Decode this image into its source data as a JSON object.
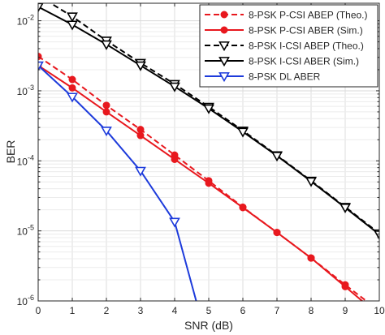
{
  "chart_data": {
    "type": "line",
    "title": "",
    "xlabel": "SNR (dB)",
    "ylabel": "BER",
    "xlim": [
      0,
      10
    ],
    "ylim_log10": [
      -6,
      -1.75
    ],
    "yscale": "log",
    "grid": true,
    "legend_position": "top-right",
    "x_ticks": [
      "0",
      "1",
      "2",
      "3",
      "4",
      "5",
      "6",
      "7",
      "8",
      "9",
      "10"
    ],
    "y_ticks": [
      {
        "base": "10",
        "exp": "-2",
        "log": -2
      },
      {
        "base": "10",
        "exp": "-3",
        "log": -3
      },
      {
        "base": "10",
        "exp": "-4",
        "log": -4
      },
      {
        "base": "10",
        "exp": "-5",
        "log": -5
      },
      {
        "base": "10",
        "exp": "-6",
        "log": -6
      }
    ],
    "series": [
      {
        "name": "8-PSK P-CSI ABEP (Theo.)",
        "color": "#e8181e",
        "dash": true,
        "marker": "dot",
        "x": [
          0,
          1,
          2,
          3,
          4,
          5,
          6,
          7,
          8,
          9,
          10
        ],
        "y": [
          0.0031,
          0.00145,
          0.00062,
          0.00028,
          0.000121,
          5.2e-05,
          2.18e-05,
          9.5e-06,
          4.1e-06,
          1.7e-06,
          7.2e-07
        ]
      },
      {
        "name": "8-PSK P-CSI ABER (Sim.)",
        "color": "#e8181e",
        "dash": false,
        "marker": "dot",
        "x": [
          0,
          1,
          2,
          3,
          4,
          5,
          6,
          7,
          8,
          9,
          10
        ],
        "y": [
          0.0023,
          0.0011,
          0.0005,
          0.00023,
          0.000105,
          4.8e-05,
          2.15e-05,
          9.5e-06,
          4.1e-06,
          1.6e-06,
          6.2e-07
        ]
      },
      {
        "name": "8-PSK I-CSI ABEP (Theo.)",
        "color": "#000000",
        "dash": true,
        "marker": "triangle-down",
        "x": [
          0,
          1,
          2,
          3,
          4,
          5,
          6,
          7,
          8,
          9,
          10
        ],
        "y": [
          0.023,
          0.0115,
          0.0052,
          0.0025,
          0.00125,
          0.00059,
          0.00027,
          0.00012,
          5.2e-05,
          2.2e-05,
          9.2e-06
        ]
      },
      {
        "name": "8-PSK I-CSI ABER (Sim.)",
        "color": "#000000",
        "dash": false,
        "marker": "triangle-down",
        "x": [
          0,
          1,
          2,
          3,
          4,
          5,
          6,
          7,
          8,
          9,
          10
        ],
        "y": [
          0.0158,
          0.0088,
          0.0046,
          0.0023,
          0.00115,
          0.00056,
          0.00026,
          0.000118,
          5.1e-05,
          2.15e-05,
          8.9e-06
        ]
      },
      {
        "name": "8-PSK DL ABER",
        "color": "#1d3bdb",
        "dash": false,
        "marker": "triangle-down-open",
        "x": [
          0,
          1,
          2,
          3,
          4,
          5
        ],
        "y": [
          0.0023,
          0.00082,
          0.00027,
          7.2e-05,
          1.35e-05,
          2.2e-07
        ]
      }
    ]
  }
}
